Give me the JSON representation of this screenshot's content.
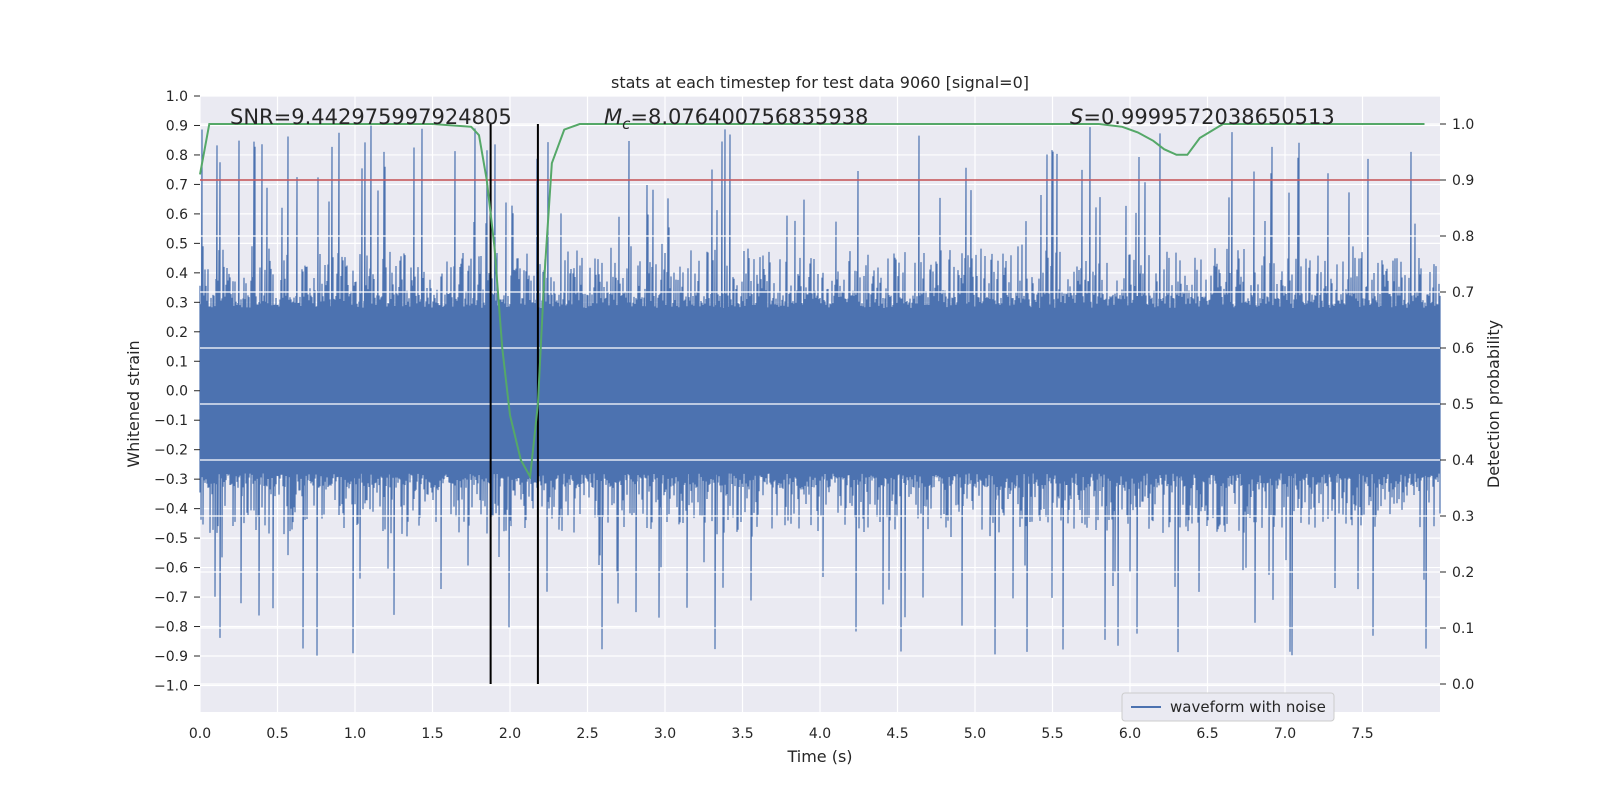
{
  "chart_data": {
    "type": "line",
    "title": "stats at each timestep for test data 9060 [signal=0]",
    "xlabel": "Time (s)",
    "ylabel_left": "Whitened strain",
    "ylabel_right": "Detection probability",
    "xlim": [
      0.0,
      8.0
    ],
    "ylim_left": [
      -1.09,
      1.0
    ],
    "ylim_right": [
      -0.05,
      1.05
    ],
    "x_ticks": [
      "0.0",
      "0.5",
      "1.0",
      "1.5",
      "2.0",
      "2.5",
      "3.0",
      "3.5",
      "4.0",
      "4.5",
      "5.0",
      "5.5",
      "6.0",
      "6.5",
      "7.0",
      "7.5"
    ],
    "left_ticks": [
      "1.0",
      "0.9",
      "0.8",
      "0.7",
      "0.6",
      "0.5",
      "0.4",
      "0.3",
      "0.2",
      "0.1",
      "0.0",
      "−0.1",
      "−0.2",
      "−0.3",
      "−0.4",
      "−0.5",
      "−0.6",
      "−0.7",
      "−0.8",
      "−0.9",
      "−1.0"
    ],
    "right_ticks": [
      "1.0",
      "0.9",
      "0.8",
      "0.7",
      "0.6",
      "0.5",
      "0.4",
      "0.3",
      "0.2",
      "0.1",
      "0.0"
    ],
    "annotations": {
      "snr": "SNR=9.442975997924805",
      "mc_symbol": "M",
      "mc_sub": "c",
      "mc_value": "=8.076400756835938",
      "s_symbol": "S",
      "s_value": "=0.9999572038650513"
    },
    "threshold": 0.9,
    "markers_x": [
      1.875,
      2.18
    ],
    "series": [
      {
        "name": "waveform with noise",
        "color": "#4c72b0",
        "kind": "noisy strain",
        "core_amplitude": 0.33,
        "bar_amplitude": 0.5,
        "peak_amplitude": 0.9
      },
      {
        "name": "detection probability",
        "color": "#55a868",
        "x": [
          0.0,
          0.06,
          0.2,
          0.5,
          1.0,
          1.5,
          1.75,
          1.8,
          1.85,
          1.9,
          1.95,
          2.0,
          2.07,
          2.13,
          2.18,
          2.22,
          2.27,
          2.35,
          2.45,
          3.0,
          4.0,
          5.0,
          5.5,
          5.8,
          5.95,
          6.05,
          6.15,
          6.22,
          6.3,
          6.37,
          6.45,
          6.6,
          7.0,
          7.9
        ],
        "y": [
          0.91,
          1.0,
          1.0,
          1.0,
          1.0,
          1.0,
          0.995,
          0.98,
          0.9,
          0.78,
          0.6,
          0.48,
          0.4,
          0.37,
          0.5,
          0.72,
          0.93,
          0.99,
          1.0,
          1.0,
          1.0,
          1.0,
          1.0,
          1.0,
          0.995,
          0.985,
          0.97,
          0.955,
          0.945,
          0.945,
          0.975,
          1.0,
          1.0,
          1.0
        ]
      },
      {
        "name": "threshold",
        "color": "#c44e52",
        "x": [
          0.0,
          8.0
        ],
        "y": [
          0.9,
          0.9
        ]
      }
    ],
    "legend": [
      "waveform with noise"
    ],
    "legend_position": "lower-right",
    "grid": true
  }
}
